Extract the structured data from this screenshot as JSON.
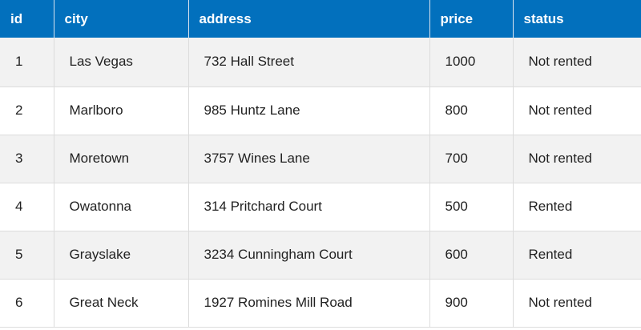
{
  "table": {
    "headers": {
      "id": "id",
      "city": "city",
      "address": "address",
      "price": "price",
      "status": "status"
    },
    "rows": [
      {
        "id": "1",
        "city": "Las Vegas",
        "address": "732 Hall Street",
        "price": "1000",
        "status": "Not rented"
      },
      {
        "id": "2",
        "city": "Marlboro",
        "address": "985 Huntz Lane",
        "price": "800",
        "status": "Not rented"
      },
      {
        "id": "3",
        "city": "Moretown",
        "address": "3757 Wines Lane",
        "price": "700",
        "status": "Not rented"
      },
      {
        "id": "4",
        "city": "Owatonna",
        "address": "314 Pritchard Court",
        "price": "500",
        "status": "Rented"
      },
      {
        "id": "5",
        "city": "Grayslake",
        "address": "3234 Cunningham Court",
        "price": "600",
        "status": "Rented"
      },
      {
        "id": "6",
        "city": "Great Neck",
        "address": "1927 Romines Mill Road",
        "price": "900",
        "status": "Not rented"
      }
    ]
  },
  "colors": {
    "header_bg": "#0270bd",
    "header_text": "#ffffff",
    "row_alt_bg": "#f2f2f2",
    "row_bg": "#ffffff"
  }
}
